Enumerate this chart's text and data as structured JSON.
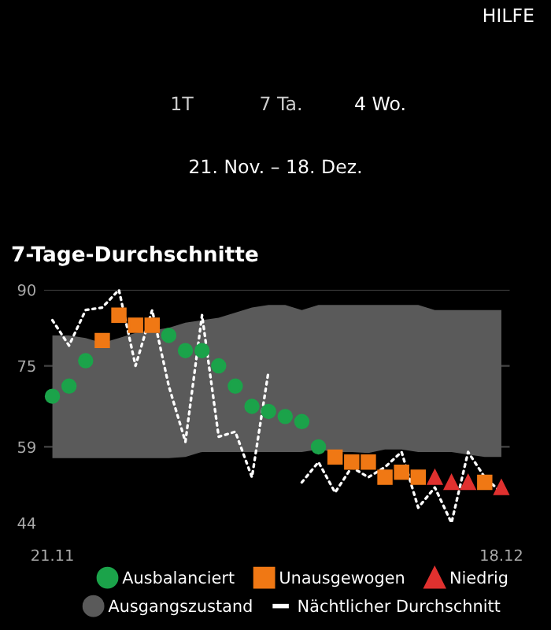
{
  "chart_data": {
    "type": "scatter",
    "title": "7-Tage-Durchschnitte",
    "subtitle": "21. Nov. – 18. Dez.",
    "annotations": [
      "HILFE",
      "1T",
      "7 Ta.",
      "4 Wo."
    ],
    "categories": [
      "21.11",
      null,
      null,
      null,
      null,
      null,
      null,
      null,
      null,
      null,
      null,
      null,
      null,
      null,
      null,
      null,
      null,
      null,
      null,
      null,
      null,
      null,
      null,
      null,
      null,
      null,
      null,
      "18.12"
    ],
    "ylim": [
      44,
      90
    ],
    "yticks": [
      44,
      59,
      75,
      90
    ],
    "grid": "y",
    "legend": "bottom",
    "series": [
      {
        "name": "Ausgangszustand",
        "type": "area",
        "color": "#5a5a5a",
        "values": [
          null,
          null,
          null,
          null,
          null,
          null,
          null,
          null,
          null,
          null,
          null,
          null,
          null,
          null,
          null,
          null,
          null,
          null,
          null,
          null,
          null,
          null,
          null,
          null,
          null,
          null,
          null,
          null
        ],
        "lower": [
          56.8,
          56.8,
          56.8,
          56.8,
          56.8,
          56.8,
          56.8,
          56.8,
          57,
          58,
          58,
          58,
          58,
          58,
          58,
          58,
          58.5,
          58,
          58,
          57.8,
          58.5,
          58.5,
          58,
          58,
          58,
          57.5,
          57,
          57
        ],
        "upper": [
          81,
          81,
          80.5,
          79.5,
          80.5,
          81.5,
          82,
          82.5,
          83.5,
          84,
          84.5,
          85.5,
          86.5,
          87,
          87,
          86,
          87,
          87,
          87,
          87,
          87,
          87,
          87,
          86,
          86,
          86,
          86,
          86
        ]
      },
      {
        "name": "Nächtlicher Durchschnitt",
        "type": "line",
        "line_style": "dotted",
        "color": "#ffffff",
        "values": [
          84,
          79,
          86,
          86.5,
          90,
          75,
          86,
          71,
          60,
          85,
          61,
          62,
          53,
          74,
          null,
          52,
          56,
          50,
          55,
          53,
          55,
          58,
          47,
          51,
          44,
          58,
          53,
          50
        ]
      },
      {
        "name": "Ausbalanciert",
        "color": "#1ba34a",
        "marker": "circle",
        "values": [
          69,
          71,
          76,
          null,
          null,
          null,
          null,
          81,
          78,
          78,
          75,
          71,
          67,
          66,
          65,
          64,
          59,
          null,
          null,
          null,
          null,
          null,
          null,
          null,
          null,
          null,
          null,
          null
        ]
      },
      {
        "name": "Unausgewogen",
        "color": "#f07814",
        "marker": "square",
        "values": [
          null,
          null,
          null,
          80,
          85,
          83,
          83,
          null,
          null,
          null,
          null,
          null,
          null,
          null,
          null,
          null,
          null,
          57,
          56,
          56,
          53,
          54,
          53,
          null,
          null,
          null,
          52,
          null
        ]
      },
      {
        "name": "Niedrig",
        "color": "#e0312f",
        "marker": "triangle",
        "values": [
          null,
          null,
          null,
          null,
          null,
          null,
          null,
          null,
          null,
          null,
          null,
          null,
          null,
          null,
          null,
          null,
          null,
          null,
          null,
          null,
          null,
          null,
          null,
          53,
          52,
          52,
          null,
          51
        ]
      }
    ]
  }
}
